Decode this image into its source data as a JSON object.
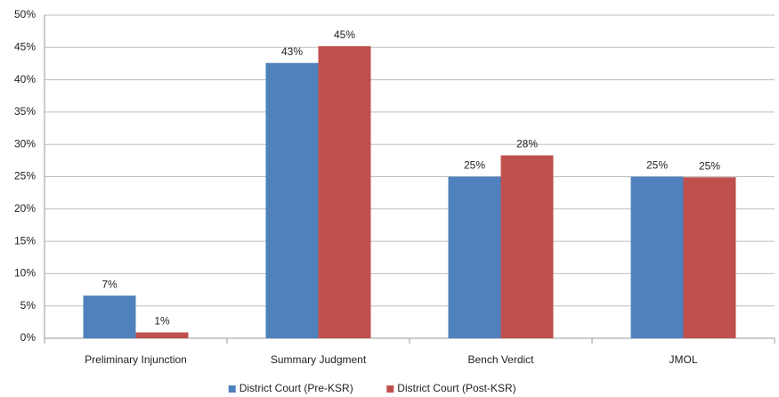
{
  "chart_data": {
    "type": "bar",
    "categories": [
      "Preliminary Injunction",
      "Summary Judgment",
      "Bench Verdict",
      "JMOL"
    ],
    "series": [
      {
        "name": "District Court (Pre-KSR)",
        "color": "#4f81bd",
        "values": [
          6.6,
          42.6,
          25,
          25
        ],
        "value_labels": [
          "7%",
          "43%",
          "25%",
          "25%"
        ]
      },
      {
        "name": "District Court (Post-KSR)",
        "color": "#c0504d",
        "values": [
          0.9,
          45.2,
          28.3,
          24.9
        ],
        "value_labels": [
          "1%",
          "45%",
          "28%",
          "25%"
        ]
      }
    ],
    "ylim": [
      0,
      50
    ],
    "yticks": [
      {
        "value": 0,
        "label": "0%"
      },
      {
        "value": 5,
        "label": "5%"
      },
      {
        "value": 10,
        "label": "10%"
      },
      {
        "value": 15,
        "label": "15%"
      },
      {
        "value": 20,
        "label": "20%"
      },
      {
        "value": 25,
        "label": "25%"
      },
      {
        "value": 30,
        "label": "30%"
      },
      {
        "value": 35,
        "label": "35%"
      },
      {
        "value": 40,
        "label": "40%"
      },
      {
        "value": 45,
        "label": "45%"
      },
      {
        "value": 50,
        "label": "50%"
      }
    ],
    "grid": true,
    "legend": "bottom"
  }
}
